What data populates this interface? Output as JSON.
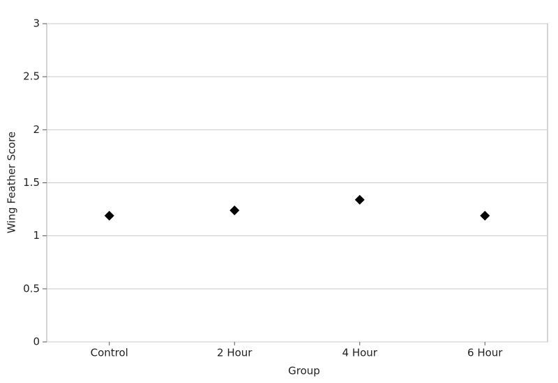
{
  "chart_data": {
    "type": "scatter",
    "x_label": "Group",
    "y_label": "Wing Feather Score",
    "categories": [
      "Control",
      "2 Hour",
      "4 Hour",
      "6 Hour"
    ],
    "values": [
      1.19,
      1.24,
      1.34,
      1.19
    ],
    "color": "#000000",
    "marker": "diamond",
    "ylim": [
      0,
      3
    ],
    "yticks": [
      0,
      0.5,
      1,
      1.5,
      2,
      2.5,
      3
    ],
    "grid": true
  }
}
